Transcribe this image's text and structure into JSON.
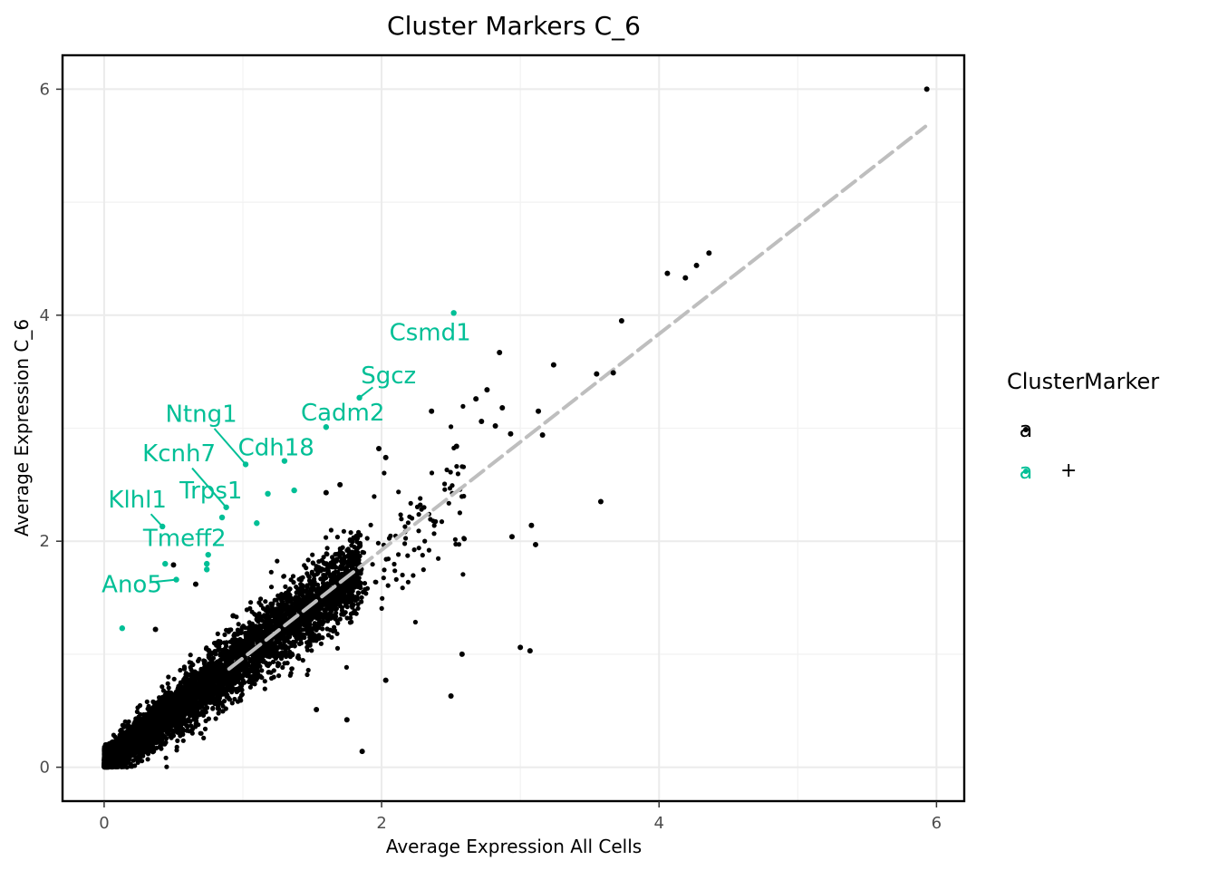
{
  "chart_data": {
    "type": "scatter",
    "title": "Cluster Markers  C_6",
    "xlabel": "Average Expression All Cells",
    "ylabel": "Average Expression C_6",
    "xlim": [
      -0.3,
      6.2
    ],
    "ylim": [
      -0.3,
      6.3
    ],
    "x_ticks": [
      0,
      2,
      4,
      6
    ],
    "y_ticks": [
      0,
      2,
      4,
      6
    ],
    "grid": true,
    "trend_line": {
      "style": "dashed",
      "color": "#bebebe",
      "from": [
        0.9,
        0.87
      ],
      "to": [
        5.92,
        5.67
      ]
    },
    "colors": {
      "non_marker": "#000000",
      "marker": "#00bf96",
      "trend": "#bebebe"
    },
    "legend": {
      "title": "ClusterMarker",
      "position": "right",
      "entries": [
        {
          "key": "a",
          "label": "",
          "color": "#000000"
        },
        {
          "key": "a",
          "label": "+",
          "color": "#00bf96"
        }
      ]
    },
    "marker_genes": [
      {
        "gene": "Csmd1",
        "x": 2.52,
        "y": 4.02,
        "label_x": 2.35,
        "label_y": 3.85
      },
      {
        "gene": "Sgcz",
        "x": 1.84,
        "y": 3.27,
        "label_x": 2.05,
        "label_y": 3.47
      },
      {
        "gene": "Cadm2",
        "x": 1.6,
        "y": 3.01,
        "label_x": 1.72,
        "label_y": 3.14
      },
      {
        "gene": "Ntng1",
        "x": 1.02,
        "y": 2.68,
        "label_x": 0.7,
        "label_y": 3.13
      },
      {
        "gene": "Kcnh7",
        "x": 0.88,
        "y": 2.3,
        "label_x": 0.54,
        "label_y": 2.78
      },
      {
        "gene": "Cdh18",
        "x": 1.3,
        "y": 2.71,
        "label_x": 1.24,
        "label_y": 2.83
      },
      {
        "gene": "Trps1",
        "x": 0.85,
        "y": 2.21,
        "label_x": 0.77,
        "label_y": 2.45
      },
      {
        "gene": "Klhl1",
        "x": 0.42,
        "y": 2.13,
        "label_x": 0.24,
        "label_y": 2.37
      },
      {
        "gene": "Tmeff2",
        "x": 0.75,
        "y": 1.88,
        "label_x": 0.58,
        "label_y": 2.03
      },
      {
        "gene": "Ano5",
        "x": 0.52,
        "y": 1.66,
        "label_x": 0.2,
        "label_y": 1.62
      }
    ],
    "marker_points_unlabeled": [
      [
        0.44,
        1.8
      ],
      [
        0.74,
        1.8
      ],
      [
        0.74,
        1.75
      ],
      [
        1.18,
        2.42
      ],
      [
        1.37,
        2.45
      ],
      [
        1.1,
        2.16
      ],
      [
        0.13,
        1.23
      ]
    ],
    "outlier_points": [
      [
        5.93,
        6.0
      ],
      [
        4.36,
        4.55
      ],
      [
        4.27,
        4.44
      ],
      [
        4.19,
        4.33
      ],
      [
        4.06,
        4.37
      ],
      [
        3.73,
        3.95
      ],
      [
        3.55,
        3.48
      ],
      [
        3.67,
        3.49
      ],
      [
        2.85,
        3.67
      ],
      [
        3.24,
        3.56
      ],
      [
        2.76,
        3.34
      ],
      [
        2.68,
        3.26
      ],
      [
        2.87,
        3.18
      ],
      [
        3.13,
        3.15
      ],
      [
        2.36,
        3.15
      ],
      [
        2.72,
        3.06
      ],
      [
        2.82,
        3.02
      ],
      [
        2.93,
        2.95
      ],
      [
        3.16,
        2.94
      ],
      [
        2.54,
        2.84
      ],
      [
        1.98,
        2.82
      ],
      [
        2.03,
        2.74
      ],
      [
        1.6,
        2.43
      ],
      [
        1.7,
        2.5
      ],
      [
        3.58,
        2.35
      ],
      [
        3.08,
        2.14
      ],
      [
        2.94,
        2.04
      ],
      [
        3.11,
        1.97
      ],
      [
        3.0,
        1.06
      ],
      [
        3.07,
        1.03
      ],
      [
        2.58,
        1.0
      ],
      [
        2.03,
        0.77
      ],
      [
        2.5,
        0.63
      ],
      [
        1.86,
        0.14
      ],
      [
        0.5,
        1.79
      ],
      [
        0.66,
        1.62
      ],
      [
        0.93,
        1.34
      ],
      [
        0.37,
        1.22
      ],
      [
        1.53,
        0.51
      ],
      [
        1.75,
        0.42
      ]
    ]
  }
}
